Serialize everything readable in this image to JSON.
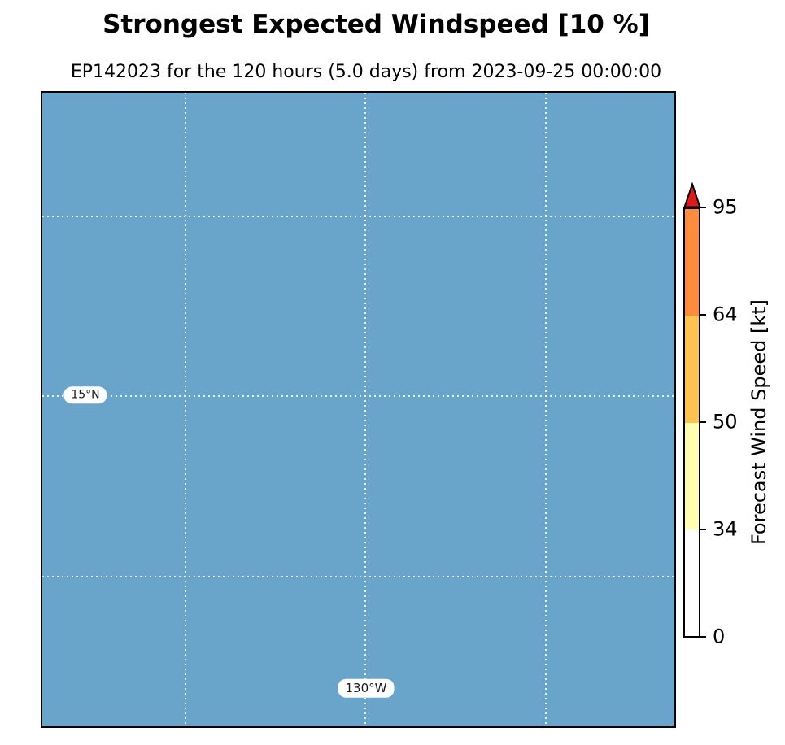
{
  "title": "Strongest Expected Windspeed [10 %]",
  "subtitle": "EP142023 for the 120 hours (5.0 days) from 2023-09-25 00:00:00",
  "map": {
    "ocean_color": "#69a4cb",
    "gridline_color": "rgba(255,255,255,0.85)",
    "lat_label": "15°N",
    "lon_label": "130°W"
  },
  "colorbar": {
    "label": "Forecast Wind Speed [kt]",
    "tick_labels_top_to_bottom": [
      "95",
      "64",
      "50",
      "34",
      "0"
    ],
    "segments_top_to_bottom": [
      {
        "range": "64-95 kt",
        "color": "#fd8d3c"
      },
      {
        "range": "50-64 kt",
        "color": "#fec44f"
      },
      {
        "range": "34-50 kt",
        "color": "#ffffb2"
      },
      {
        "range": "0-34 kt",
        "color": "#ffffff"
      }
    ],
    "over_color": "#e31a1c"
  },
  "chart_data": {
    "type": "heatmap",
    "title": "Strongest Expected Windspeed [10 %]",
    "subtitle": "EP142023 for the 120 hours (5.0 days) from 2023-09-25 00:00:00",
    "colorbar_label": "Forecast Wind Speed [kt]",
    "colorbar_boundaries_kt": [
      0,
      34,
      50,
      64,
      95
    ],
    "colorbar_colors": [
      "#ffffff",
      "#ffffb2",
      "#fec44f",
      "#fd8d3c"
    ],
    "colorbar_over_arrow_color": "#e31a1c",
    "colorbar_tick_spacing": "equal segment heights (non-linear in value)",
    "visible_gridline_labels": {
      "latitude": "15°N",
      "longitude": "130°W"
    },
    "gridlines": {
      "style": "dotted white",
      "vertical_count": 3,
      "horizontal_count": 3
    },
    "field_note": "uniform blue ocean background; no shaded wind-speed contours visible on map"
  }
}
